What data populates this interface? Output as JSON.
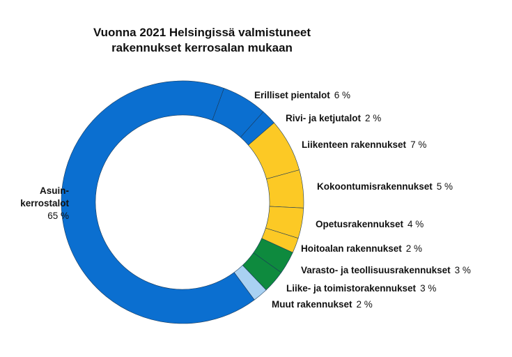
{
  "chart_data": {
    "type": "donut",
    "title": "Vuonna 2021 Helsingissä valmistuneet\nrakennukset kerrosalan mukaan",
    "categories": [
      "Erilliset pientalot",
      "Rivi- ja ketjutalot",
      "Liikenteen rakennukset",
      "Kokoontumisrakennukset",
      "Opetusrakennukset",
      "Hoitoalan rakennukset",
      "Varasto- ja teollisuusrakennukset",
      "Liike- ja toimistorakennukset",
      "Muut rakennukset",
      "Asuin-\nkerrostalot"
    ],
    "values": [
      6,
      2,
      7,
      5,
      4,
      2,
      3,
      3,
      2,
      65
    ],
    "value_labels": [
      "6 %",
      "2 %",
      "7 %",
      "5 %",
      "4 %",
      "2 %",
      "3 %",
      "3 %",
      "2 %",
      "65 %"
    ],
    "colors": [
      "#0b6fd0",
      "#0b6fd0",
      "#fcc925",
      "#fcc925",
      "#fcc925",
      "#fcc925",
      "#0e8a3e",
      "#0e8a3e",
      "#a9d1f2",
      "#0b6fd0"
    ]
  }
}
